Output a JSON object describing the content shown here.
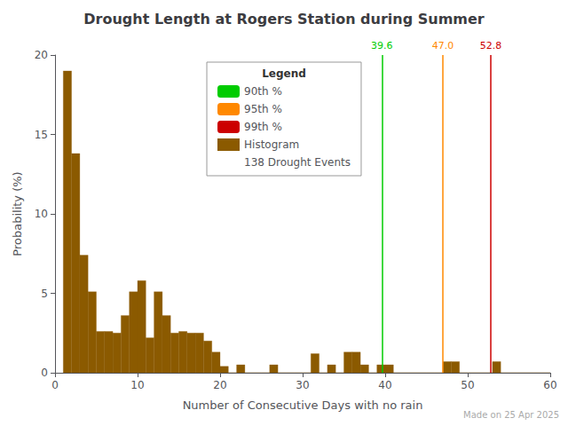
{
  "chart_data": {
    "type": "histogram",
    "title": "Drought Length at Rogers Station during Summer",
    "xlabel": "Number of Consecutive Days with no rain",
    "ylabel": "Probability (%)",
    "bins": [
      1,
      2,
      3,
      4,
      5,
      6,
      7,
      8,
      9,
      10,
      11,
      12,
      13,
      14,
      15,
      16,
      17,
      18,
      19,
      20,
      21,
      22,
      23,
      24,
      25,
      26,
      27,
      28,
      29,
      30,
      31,
      32,
      33,
      34,
      35,
      36,
      37,
      38,
      39,
      40,
      41,
      42,
      43,
      44,
      45,
      46,
      47,
      48,
      49,
      50,
      51,
      52,
      53,
      54,
      55,
      56,
      57,
      58,
      59,
      60
    ],
    "series": [
      {
        "name": "Histogram",
        "color": "#8B5A00",
        "values": [
          19.0,
          13.8,
          7.4,
          5.1,
          2.6,
          2.6,
          2.5,
          3.6,
          5.1,
          5.8,
          2.2,
          5.1,
          3.6,
          2.5,
          2.6,
          2.5,
          2.5,
          2.0,
          1.3,
          0.4,
          0.0,
          0.5,
          0.0,
          0.0,
          0.0,
          0.5,
          0.0,
          0.0,
          0.0,
          0.0,
          1.2,
          0.0,
          0.5,
          0.0,
          1.3,
          1.3,
          0.5,
          0.0,
          0.5,
          0.5,
          0.0,
          0.0,
          0.0,
          0.0,
          0.0,
          0.0,
          0.7,
          0.7,
          0.0,
          0.0,
          0.0,
          0.0,
          0.7,
          0.0,
          0.0,
          0.0,
          0.0,
          0.0,
          0.0
        ]
      }
    ],
    "vlines": [
      {
        "name": "90th %",
        "x": 39.6,
        "label": "39.6",
        "color": "#00CC00"
      },
      {
        "name": "95th %",
        "x": 47.0,
        "label": "47.0",
        "color": "#FF8800"
      },
      {
        "name": "99th %",
        "x": 52.8,
        "label": "52.8",
        "color": "#CC0000"
      }
    ],
    "legend_title": "Legend",
    "legend_note": "138 Drought Events",
    "annotations": [
      {
        "text": "Made on 25 Apr 2025",
        "color": "#aaaaaa"
      }
    ],
    "xlim": [
      0,
      60
    ],
    "ylim": [
      0,
      20
    ],
    "xticks": [
      0,
      10,
      20,
      30,
      40,
      50,
      60
    ],
    "yticks": [
      0,
      5,
      10,
      15,
      20
    ],
    "grid": false,
    "legend": "top"
  }
}
